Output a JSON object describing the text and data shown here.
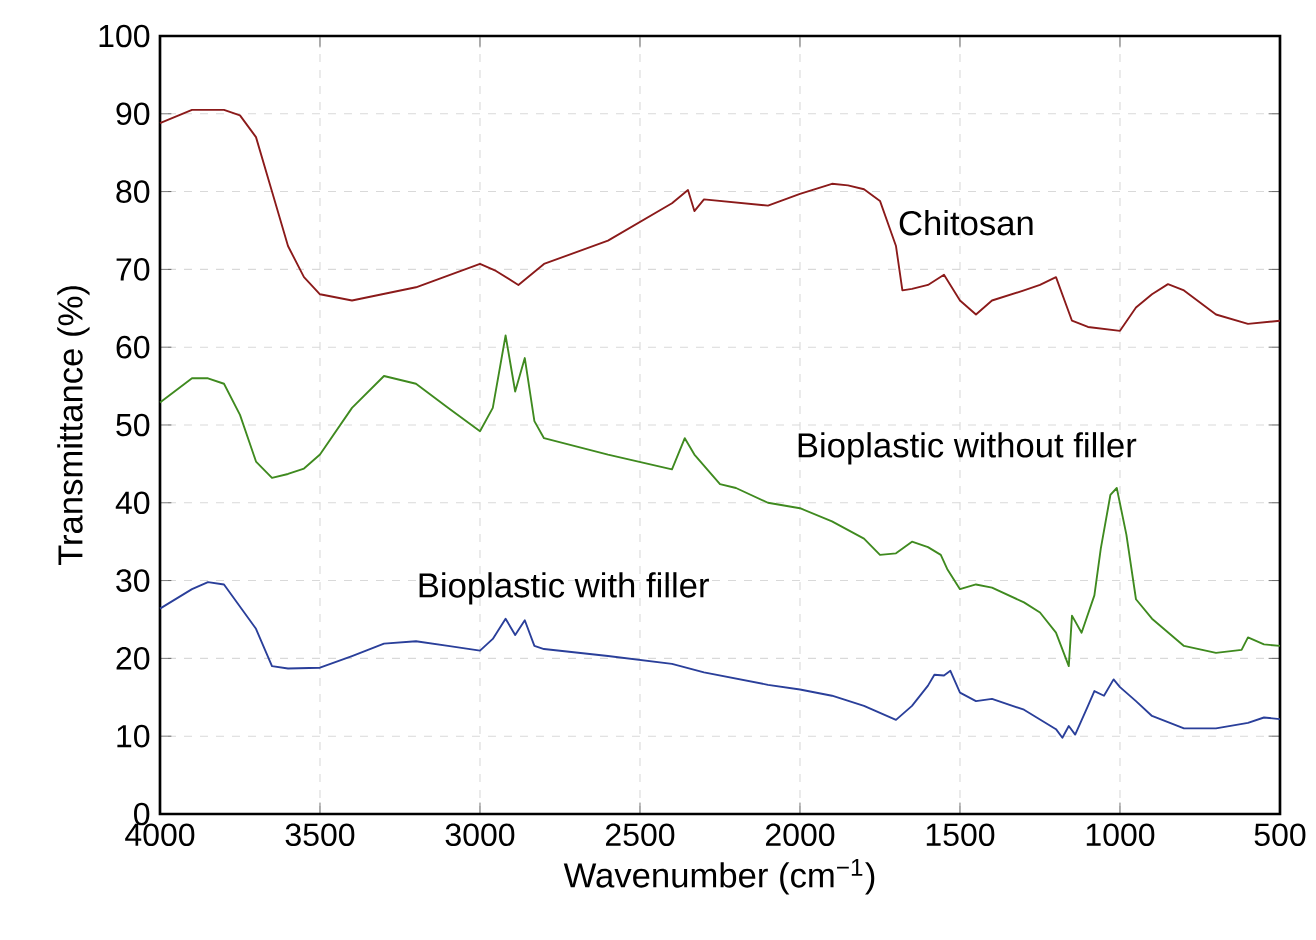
{
  "chart_data": {
    "type": "line",
    "xlabel": "Wavenumber (cm$^{−1}$)",
    "ylabel": "Transmittance (%)",
    "xlim": [
      4000,
      500
    ],
    "xticks": [
      4000,
      3500,
      3000,
      2500,
      2000,
      1500,
      1000,
      500
    ],
    "ylim": [
      0,
      100
    ],
    "yticks": [
      0,
      10,
      20,
      30,
      40,
      50,
      60,
      70,
      80,
      90,
      100
    ],
    "grid": true,
    "legend": false,
    "marker": "none",
    "line_style": "solid",
    "series": [
      {
        "name": "Chitosan",
        "color": "#8b1a1a",
        "x": [
          4000,
          3900,
          3800,
          3750,
          3700,
          3650,
          3600,
          3550,
          3500,
          3400,
          3200,
          3000,
          2950,
          2880,
          2800,
          2600,
          2400,
          2350,
          2330,
          2300,
          2100,
          2000,
          1900,
          1850,
          1800,
          1750,
          1700,
          1680,
          1650,
          1600,
          1550,
          1500,
          1450,
          1400,
          1300,
          1250,
          1200,
          1150,
          1100,
          1000,
          950,
          900,
          850,
          800,
          700,
          600,
          500
        ],
        "values": [
          88.8,
          90.5,
          90.5,
          89.8,
          87,
          80,
          73,
          69,
          66.8,
          66,
          67.7,
          70.7,
          69.8,
          68,
          70.7,
          73.7,
          78.5,
          80.2,
          77.5,
          79,
          78.2,
          79.7,
          81,
          80.8,
          80.3,
          78.8,
          73,
          67.3,
          67.5,
          68,
          69.3,
          66,
          64.2,
          66,
          67.3,
          68,
          69,
          63.4,
          62.6,
          62.1,
          65.1,
          66.8,
          68.1,
          67.3,
          64.2,
          63,
          63.4
        ]
      },
      {
        "name": "Bioplastic without filler",
        "color": "#3f8a1f",
        "x": [
          4000,
          3900,
          3850,
          3800,
          3750,
          3700,
          3650,
          3600,
          3550,
          3500,
          3400,
          3300,
          3200,
          3100,
          3000,
          2960,
          2920,
          2890,
          2860,
          2830,
          2800,
          2600,
          2400,
          2360,
          2330,
          2250,
          2200,
          2100,
          2000,
          1900,
          1800,
          1750,
          1700,
          1650,
          1600,
          1560,
          1540,
          1500,
          1450,
          1400,
          1300,
          1250,
          1200,
          1160,
          1150,
          1120,
          1080,
          1060,
          1030,
          1010,
          980,
          950,
          900,
          800,
          700,
          620,
          600,
          550,
          500
        ],
        "values": [
          52.9,
          56,
          56,
          55.3,
          51.3,
          45.3,
          43.2,
          43.7,
          44.4,
          46.2,
          52.2,
          56.3,
          55.3,
          52.2,
          49.2,
          52.2,
          61.5,
          54.3,
          58.6,
          50.5,
          48.3,
          46.2,
          44.3,
          48.3,
          46.2,
          42.4,
          41.9,
          40,
          39.3,
          37.6,
          35.4,
          33.3,
          33.5,
          35,
          34.3,
          33.3,
          31.5,
          28.9,
          29.5,
          29.1,
          27.2,
          25.9,
          23.3,
          19,
          25.5,
          23.3,
          28.1,
          34.1,
          41,
          41.9,
          35.9,
          27.6,
          25.1,
          21.6,
          20.7,
          21.1,
          22.7,
          21.8,
          21.6
        ]
      },
      {
        "name": "Bioplastic with filler",
        "color": "#2a3f9a",
        "x": [
          4000,
          3900,
          3850,
          3800,
          3700,
          3650,
          3600,
          3500,
          3400,
          3300,
          3200,
          3100,
          3000,
          2960,
          2920,
          2890,
          2860,
          2830,
          2800,
          2600,
          2400,
          2300,
          2100,
          2000,
          1900,
          1800,
          1700,
          1650,
          1600,
          1580,
          1550,
          1530,
          1500,
          1450,
          1400,
          1300,
          1200,
          1180,
          1160,
          1140,
          1100,
          1080,
          1050,
          1020,
          1000,
          950,
          900,
          800,
          700,
          600,
          550,
          500
        ],
        "values": [
          26.4,
          28.9,
          29.8,
          29.5,
          23.8,
          19,
          18.7,
          18.8,
          20.3,
          21.9,
          22.2,
          21.6,
          21,
          22.5,
          25.1,
          23,
          24.9,
          21.6,
          21.2,
          20.3,
          19.3,
          18.2,
          16.6,
          16,
          15.2,
          13.9,
          12.1,
          13.9,
          16.5,
          17.9,
          17.8,
          18.4,
          15.6,
          14.5,
          14.8,
          13.4,
          10.9,
          9.8,
          11.3,
          10.2,
          13.9,
          15.8,
          15.2,
          17.3,
          16.3,
          14.5,
          12.6,
          11,
          11,
          11.7,
          12.4,
          12.2
        ]
      }
    ]
  }
}
